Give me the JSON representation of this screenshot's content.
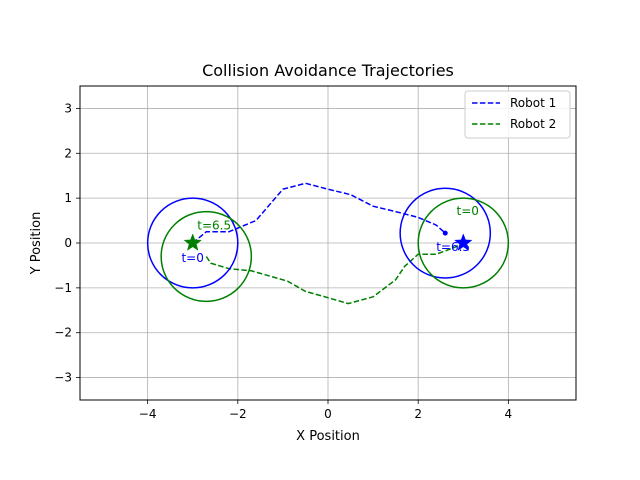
{
  "chart_data": {
    "type": "line",
    "title": "Collision Avoidance Trajectories",
    "xlabel": "X Position",
    "ylabel": "Y Position",
    "xlim": [
      -5.5,
      5.5
    ],
    "ylim": [
      -3.5,
      3.5
    ],
    "xticks": [
      -4,
      -2,
      0,
      2,
      4
    ],
    "xtick_labels": [
      "−4",
      "−2",
      "0",
      "2",
      "4"
    ],
    "yticks": [
      -3,
      -2,
      -1,
      0,
      1,
      2,
      3
    ],
    "ytick_labels": [
      "−3",
      "−2",
      "−1",
      "0",
      "1",
      "2",
      "3"
    ],
    "grid": true,
    "legend_position": "top-right",
    "series": [
      {
        "name": "Robot 1",
        "color": "#0000ff",
        "style": "dashed",
        "x": [
          -3.0,
          -2.7,
          -2.2,
          -1.6,
          -1.0,
          -0.5,
          0.0,
          0.5,
          1.0,
          1.5,
          2.0,
          2.4,
          2.6
        ],
        "y": [
          0.0,
          0.25,
          0.25,
          0.5,
          1.2,
          1.33,
          1.2,
          1.08,
          0.82,
          0.7,
          0.57,
          0.4,
          0.22
        ]
      },
      {
        "name": "Robot 2",
        "color": "#008000",
        "style": "dashed",
        "x": [
          -2.7,
          -2.6,
          -2.2,
          -1.7,
          -0.9,
          -0.5,
          0.0,
          0.45,
          1.0,
          1.5,
          1.7,
          2.0,
          2.4,
          2.8,
          3.0
        ],
        "y": [
          -0.3,
          -0.45,
          -0.57,
          -0.62,
          -0.85,
          -1.08,
          -1.22,
          -1.35,
          -1.2,
          -0.82,
          -0.52,
          -0.25,
          -0.25,
          -0.1,
          0.0
        ]
      }
    ],
    "circles": [
      {
        "series": "Robot 1",
        "cx": -3.0,
        "cy": 0.0,
        "r": 1.0
      },
      {
        "series": "Robot 1",
        "cx": 2.6,
        "cy": 0.22,
        "r": 1.0
      },
      {
        "series": "Robot 2",
        "cx": -2.7,
        "cy": -0.3,
        "r": 1.0
      },
      {
        "series": "Robot 2",
        "cx": 3.0,
        "cy": 0.0,
        "r": 1.0
      }
    ],
    "goal_markers": [
      {
        "series": "Robot 1",
        "x": 3.0,
        "y": 0.0,
        "marker": "star"
      },
      {
        "series": "Robot 2",
        "x": -3.0,
        "y": 0.0,
        "marker": "star"
      }
    ],
    "end_dots": [
      {
        "series": "Robot 1",
        "x": 2.6,
        "y": 0.22
      }
    ],
    "annotations": [
      {
        "text": "t=0",
        "series": "Robot 1",
        "x": -3.25,
        "y": -0.42
      },
      {
        "text": "t=6.5",
        "series": "Robot 1",
        "x": 2.4,
        "y": -0.18
      },
      {
        "text": "t=0",
        "series": "Robot 2",
        "x": 2.85,
        "y": 0.62
      },
      {
        "text": "t=6.5",
        "series": "Robot 2",
        "x": -2.9,
        "y": 0.3
      }
    ]
  }
}
